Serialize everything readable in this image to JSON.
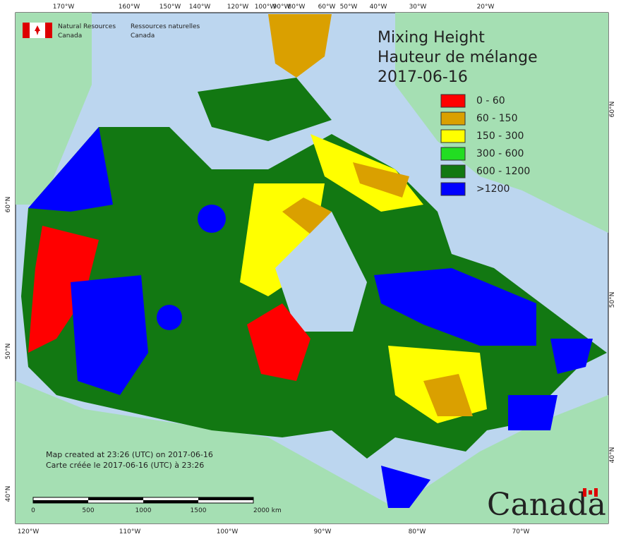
{
  "header": {
    "agency_en": [
      "Natural Resources",
      "Canada"
    ],
    "agency_fr": [
      "Ressources naturelles",
      "Canada"
    ]
  },
  "title": {
    "lines": [
      "Mixing Height",
      "Hauteur de mélange",
      "2017-06-16"
    ]
  },
  "legend": {
    "items": [
      {
        "label": "0 - 60",
        "color": "#ff0000"
      },
      {
        "label": "60 - 150",
        "color": "#daa000"
      },
      {
        "label": "150 - 300",
        "color": "#ffff00"
      },
      {
        "label": "300 - 600",
        "color": "#22dd22"
      },
      {
        "label": "600 - 1200",
        "color": "#127812"
      },
      {
        "label": ">1200",
        "color": "#0000ff"
      }
    ]
  },
  "axes": {
    "top": [
      "170°W",
      "160°W",
      "150°W",
      "140°W",
      "120°W",
      "100°W",
      "90°W",
      "80°W",
      "60°W",
      "50°W",
      "40°W",
      "30°W",
      "20°W"
    ],
    "bottom": [
      "120°W",
      "110°W",
      "100°W",
      "90°W",
      "80°W",
      "70°W"
    ],
    "left": [
      "60°N",
      "50°N",
      "40°N"
    ],
    "right": [
      "60°N",
      "50°N",
      "40°N"
    ]
  },
  "notes": [
    "Map created at 23:26 (UTC) on 2017-06-16",
    "Carte créée le 2017-06-16 (UTC) à 23:26"
  ],
  "scale_bar": {
    "labels": [
      "0",
      "500",
      "1000",
      "1500",
      "2000 km"
    ]
  },
  "wordmark": "Canada"
}
